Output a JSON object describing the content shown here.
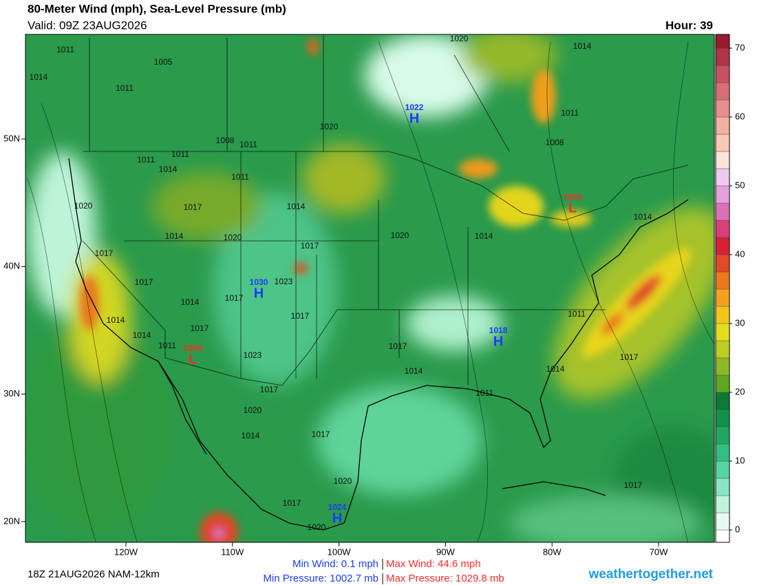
{
  "header": {
    "title": "80-Meter Wind (mph), Sea-Level Pressure (mb)",
    "valid": "Valid: 09Z 23AUG2026",
    "hour": "Hour: 39"
  },
  "map": {
    "lat_ticks": [
      {
        "value": 50,
        "label": "50N"
      },
      {
        "value": 40,
        "label": "40N"
      },
      {
        "value": 30,
        "label": "30N"
      },
      {
        "value": 20,
        "label": "20N"
      }
    ],
    "lon_ticks": [
      {
        "value": -120,
        "label": "120W"
      },
      {
        "value": -110,
        "label": "110W"
      },
      {
        "value": -100,
        "label": "100W"
      },
      {
        "value": -90,
        "label": "90W"
      },
      {
        "value": -80,
        "label": "80W"
      },
      {
        "value": -70,
        "label": "70W"
      }
    ],
    "isobar_labels": [
      "1011",
      "1005",
      "1014",
      "1011",
      "1020",
      "1014",
      "1020",
      "1008",
      "1011",
      "1011",
      "1014",
      "1011",
      "1008",
      "1011",
      "1011",
      "1020",
      "1017",
      "1014",
      "1014",
      "1014",
      "1020",
      "1017",
      "1020",
      "1014",
      "1017",
      "1023",
      "1017",
      "1017",
      "1014",
      "1017",
      "1011",
      "1014",
      "1014",
      "1017",
      "1011",
      "1017",
      "1023",
      "1014",
      "1014",
      "1017",
      "1017",
      "1011",
      "1020",
      "1017",
      "1014",
      "1020",
      "1017",
      "1017",
      "1020"
    ],
    "centers": [
      {
        "pressure": "1022",
        "letter": "H"
      },
      {
        "pressure": "1024",
        "letter": "L"
      },
      {
        "pressure": "1030",
        "letter": "H"
      },
      {
        "pressure": "1018",
        "letter": "H"
      },
      {
        "pressure": "1008",
        "letter": "L"
      },
      {
        "pressure": "1024",
        "letter": "H"
      }
    ]
  },
  "colorbar": {
    "lim": [
      -1.8,
      72
    ],
    "ticks": [
      0,
      10,
      20,
      30,
      40,
      50,
      60,
      70
    ],
    "colors": [
      "#ffffff",
      "#e6fbf0",
      "#bff3dc",
      "#8ae6c2",
      "#55d3a2",
      "#30bf80",
      "#1fa862",
      "#13914a",
      "#0c7a36",
      "#5fa621",
      "#8fb828",
      "#bccd24",
      "#e2de1e",
      "#f2c51c",
      "#f2a11f",
      "#ea781c",
      "#e04a24",
      "#d62035",
      "#d8407a",
      "#d873b8",
      "#e3a2dc",
      "#efc8ee",
      "#fbe3da",
      "#f8c9b4",
      "#f1b0a2",
      "#e78f8e",
      "#d66f72",
      "#c45262",
      "#ad3547",
      "#951c2e",
      "#7a0010"
    ]
  },
  "footer": {
    "run": "18Z 21AUG2026 NAM-12km",
    "min_wind": "Min Wind:  0.1 mph",
    "max_wind": "Max Wind:  44.6 mph",
    "min_pressure": "Min Pressure: 1002.7 mb",
    "max_pressure": "Max Pressure: 1029.8 mb",
    "site": "weathertogether.net"
  }
}
